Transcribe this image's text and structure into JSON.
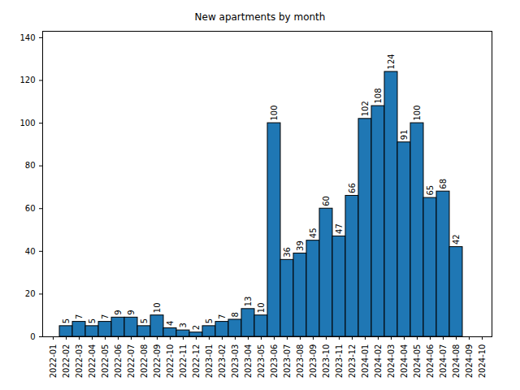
{
  "chart_data": {
    "type": "bar",
    "title": "New apartments by month",
    "categories": [
      "2022-01",
      "2022-02",
      "2022-03",
      "2022-04",
      "2022-05",
      "2022-06",
      "2022-07",
      "2022-08",
      "2022-09",
      "2022-10",
      "2022-11",
      "2022-12",
      "2023-01",
      "2023-02",
      "2023-03",
      "2023-04",
      "2023-05",
      "2023-06",
      "2023-07",
      "2023-08",
      "2023-09",
      "2023-10",
      "2023-11",
      "2023-12",
      "2024-01",
      "2024-02",
      "2024-03",
      "2024-04",
      "2024-05",
      "2024-06",
      "2024-07",
      "2024-08",
      "2024-09",
      "2024-10"
    ],
    "values": [
      null,
      5,
      7,
      5,
      7,
      9,
      9,
      5,
      10,
      4,
      3,
      2,
      5,
      7,
      8,
      13,
      10,
      100,
      36,
      39,
      45,
      60,
      47,
      66,
      102,
      108,
      124,
      91,
      100,
      65,
      68,
      42,
      null,
      null
    ],
    "color": "#1f77b4",
    "ylim": [
      0,
      143
    ],
    "yticks": [
      0,
      20,
      40,
      60,
      80,
      100,
      120,
      140
    ],
    "grid": false,
    "data_labels": true
  }
}
